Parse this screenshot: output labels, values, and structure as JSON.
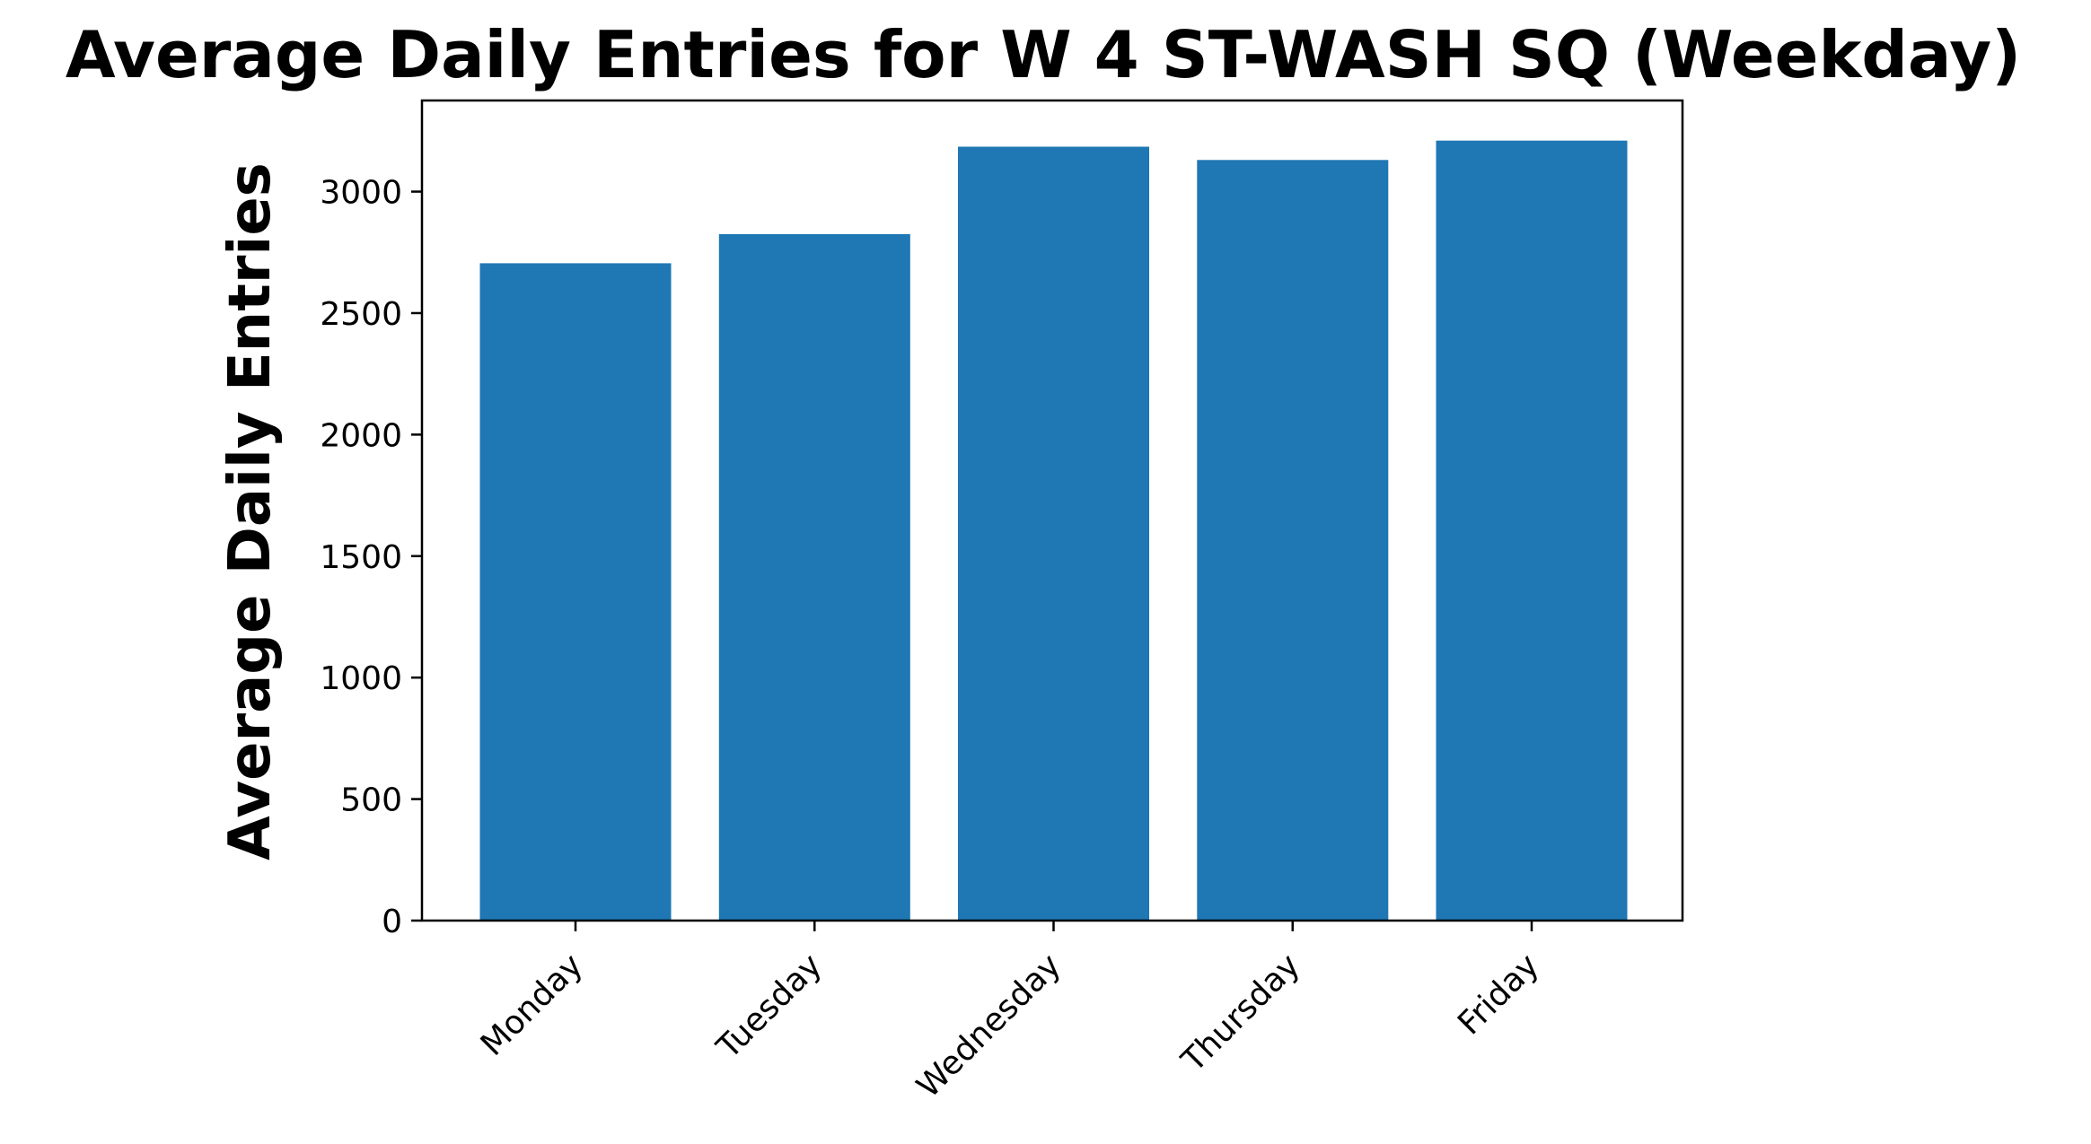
{
  "chart_data": {
    "type": "bar",
    "title": "Average Daily Entries for W 4 ST-WASH SQ (Weekday)",
    "xlabel": "",
    "ylabel": "Average Daily Entries",
    "categories": [
      "Monday",
      "Tuesday",
      "Wednesday",
      "Thursday",
      "Friday"
    ],
    "values": [
      2705,
      2825,
      3185,
      3130,
      3210
    ],
    "ylim": [
      0,
      3375
    ],
    "yticks": [
      0,
      500,
      1000,
      1500,
      2000,
      2500,
      3000
    ],
    "ytick_labels": [
      "0",
      "500",
      "1000",
      "1500",
      "2000",
      "2500",
      "3000"
    ],
    "bar_color": "#1f77b4",
    "grid": false,
    "legend": "none"
  }
}
